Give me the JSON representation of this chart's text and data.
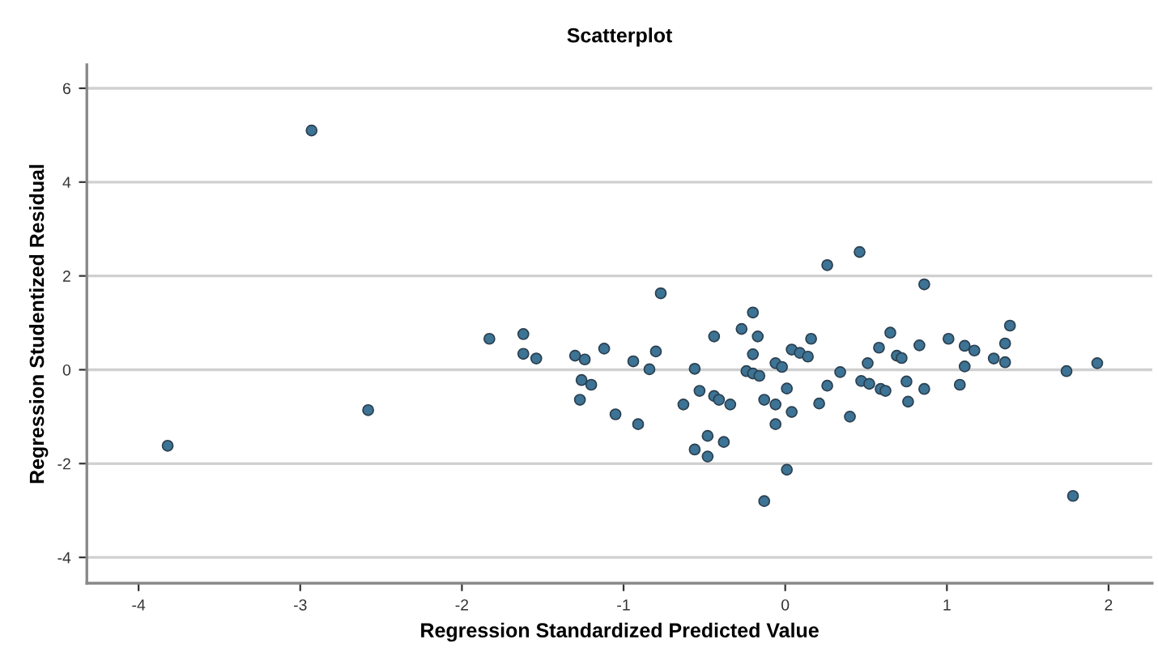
{
  "chart_data": {
    "type": "scatter",
    "title": "Scatterplot",
    "xlabel": "Regression Standardized Predicted Value",
    "ylabel": "Regression Studentized Residual",
    "xlim": [
      -4.32,
      2.27
    ],
    "ylim": [
      -4.55,
      6.5
    ],
    "xticks": [
      -4,
      -3,
      -2,
      -1,
      0,
      1,
      2
    ],
    "yticks": [
      -4,
      -2,
      0,
      2,
      4,
      6
    ],
    "grid": "y",
    "marker": "circle",
    "series": [
      {
        "color": "#3d7394",
        "x": [
          -3.82,
          -2.93,
          -2.58,
          -1.83,
          -1.62,
          -1.62,
          -1.54,
          -1.3,
          -1.24,
          -1.26,
          -1.2,
          -1.27,
          -1.12,
          -1.05,
          -0.94,
          -0.91,
          -0.84,
          -0.8,
          -0.77,
          -0.56,
          -0.53,
          -0.63,
          -0.44,
          -0.41,
          -0.34,
          -0.48,
          -0.56,
          -0.48,
          -0.38,
          -0.44,
          -0.27,
          -0.2,
          -0.17,
          -0.2,
          -0.24,
          -0.2,
          -0.16,
          -0.06,
          -0.02,
          0.01,
          -0.13,
          -0.06,
          -0.06,
          0.04,
          0.01,
          -0.13,
          0.04,
          0.09,
          0.14,
          0.16,
          0.26,
          0.21,
          0.34,
          0.4,
          0.26,
          0.46,
          0.86,
          0.51,
          0.58,
          0.65,
          0.69,
          0.72,
          0.47,
          0.52,
          0.59,
          0.62,
          0.75,
          0.76,
          0.86,
          0.83,
          1.01,
          1.11,
          1.17,
          1.11,
          1.08,
          1.29,
          1.36,
          1.36,
          1.39,
          1.74,
          1.93,
          1.78
        ],
        "values": [
          -1.62,
          5.1,
          -0.86,
          0.66,
          0.76,
          0.34,
          0.24,
          0.3,
          0.22,
          -0.22,
          -0.32,
          -0.64,
          0.45,
          -0.95,
          0.18,
          -1.16,
          0.01,
          0.39,
          1.63,
          0.02,
          -0.45,
          -0.74,
          -0.56,
          -0.64,
          -0.74,
          -1.41,
          -1.7,
          -1.85,
          -1.54,
          0.71,
          0.87,
          1.22,
          0.71,
          0.33,
          -0.03,
          -0.08,
          -0.13,
          0.14,
          0.06,
          -0.4,
          -0.64,
          -0.74,
          -1.16,
          -0.9,
          -2.13,
          -2.8,
          0.43,
          0.36,
          0.28,
          0.66,
          -0.34,
          -0.72,
          -0.05,
          -1.0,
          2.23,
          2.51,
          1.82,
          0.14,
          0.47,
          0.79,
          0.3,
          0.25,
          -0.24,
          -0.3,
          -0.41,
          -0.45,
          -0.25,
          -0.68,
          -0.41,
          0.52,
          0.66,
          0.51,
          0.41,
          0.07,
          -0.32,
          0.24,
          0.16,
          0.56,
          0.94,
          -0.03,
          0.14,
          -2.69
        ]
      }
    ]
  }
}
